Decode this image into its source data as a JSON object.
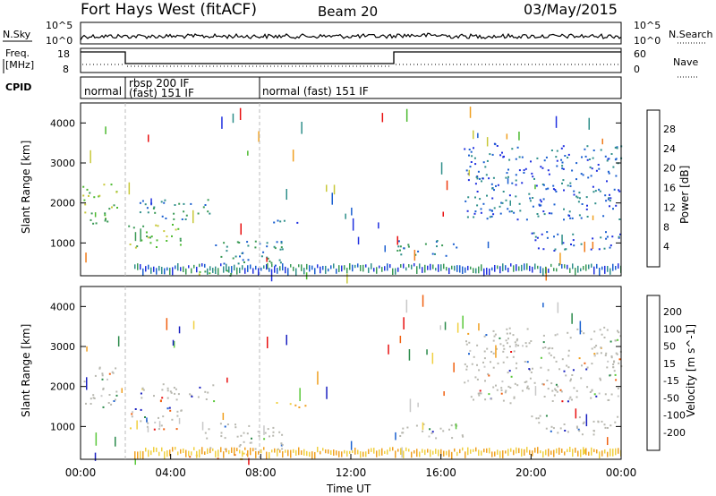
{
  "header": {
    "title": "Fort Hays West (fitACF)",
    "beam": "Beam 20",
    "date": "03/May/2015"
  },
  "top_panels": {
    "nsky_label": "N.Sky",
    "nsky_ticks": [
      "10^5",
      "10^0"
    ],
    "nsearch_label": "N.Search",
    "freq_label_line1": "Freq.",
    "freq_label_line2": "[MHz]",
    "freq_ticks": [
      "18",
      "8"
    ],
    "nave_label": "Nave",
    "nave_ticks": [
      "60",
      "0"
    ],
    "cpid_label": "CPID",
    "cpid_segments": [
      "normal",
      "rbsp 200 IF",
      "(fast) 151 IF",
      "normal (fast) 151 IF"
    ]
  },
  "colors": {
    "power_scale": [
      "#2030e0",
      "#1a5fd0",
      "#2f8f8a",
      "#3a9a55",
      "#4cba30",
      "#c8c838",
      "#f0a020",
      "#f07a18",
      "#ee3a10",
      "#e81010"
    ],
    "velocity_scale": [
      "#1a20c0",
      "#1a60d0",
      "#2a8a4a",
      "#5ac83a",
      "#c8c8c8",
      "#c8c8c8",
      "#f0d040",
      "#f0a020",
      "#f06010",
      "#e81010"
    ],
    "ground_scatter": "#b8b8b0"
  },
  "chart_data": [
    {
      "type": "heatmap",
      "title": "",
      "xlabel": "",
      "ylabel": "Slant Range [km]",
      "colorbar_label": "Power [dB]",
      "colorbar_ticks": [
        "28",
        "24",
        "20",
        "16",
        "12",
        "8",
        "4"
      ],
      "xlim": [
        "00:00",
        "24:00"
      ],
      "ylim": [
        180,
        4500
      ],
      "yticks": [
        "1000",
        "2000",
        "3000",
        "4000"
      ],
      "regions": [
        {
          "t0": 0.0,
          "t1": 1.6,
          "r0": 1500,
          "r1": 2500,
          "level": "high"
        },
        {
          "t0": 2.0,
          "t1": 4.5,
          "r0": 900,
          "r1": 1500,
          "level": "high"
        },
        {
          "t0": 2.6,
          "t1": 6.0,
          "r0": 1600,
          "r1": 2100,
          "level": "medium"
        },
        {
          "t0": 4.4,
          "t1": 7.5,
          "r0": 200,
          "r1": 350,
          "level": "high"
        },
        {
          "t0": 5.5,
          "t1": 9.0,
          "r0": 450,
          "r1": 1100,
          "level": "medium"
        },
        {
          "t0": 8.5,
          "t1": 10.5,
          "r0": 1500,
          "r1": 1650,
          "level": "low"
        },
        {
          "t0": 14.0,
          "t1": 17.0,
          "r0": 700,
          "r1": 1100,
          "level": "medium"
        },
        {
          "t0": 17.0,
          "t1": 24.0,
          "r0": 1600,
          "r1": 3500,
          "level": "low"
        },
        {
          "t0": 20.0,
          "t1": 24.0,
          "r0": 800,
          "r1": 1300,
          "level": "low"
        }
      ]
    },
    {
      "type": "heatmap",
      "title": "",
      "xlabel": "Time UT",
      "ylabel": "Slant Range [km]",
      "colorbar_label": "Velocity [m s^-1]",
      "colorbar_ticks": [
        "200",
        "100",
        "50",
        "15",
        "-15",
        "-50",
        "-100",
        "-200"
      ],
      "xlim": [
        "00:00",
        "24:00"
      ],
      "xticks": [
        "00:00",
        "04:00",
        "08:00",
        "12:00",
        "16:00",
        "20:00",
        "00:00"
      ],
      "ylim": [
        180,
        4500
      ],
      "yticks": [
        "1000",
        "2000",
        "3000",
        "4000"
      ],
      "regions": [
        {
          "t0": 0.0,
          "t1": 1.6,
          "r0": 1500,
          "r1": 2500,
          "level": "ground"
        },
        {
          "t0": 2.0,
          "t1": 4.5,
          "r0": 900,
          "r1": 1500,
          "level": "mixed"
        },
        {
          "t0": 2.6,
          "t1": 6.0,
          "r0": 1600,
          "r1": 2100,
          "level": "ground"
        },
        {
          "t0": 4.4,
          "t1": 7.5,
          "r0": 200,
          "r1": 350,
          "level": "negative"
        },
        {
          "t0": 5.5,
          "t1": 9.0,
          "r0": 450,
          "r1": 1100,
          "level": "ground"
        },
        {
          "t0": 8.5,
          "t1": 10.5,
          "r0": 1500,
          "r1": 1650,
          "level": "negative"
        },
        {
          "t0": 14.0,
          "t1": 17.0,
          "r0": 700,
          "r1": 1100,
          "level": "ground"
        },
        {
          "t0": 17.0,
          "t1": 24.0,
          "r0": 1600,
          "r1": 3500,
          "level": "ground"
        },
        {
          "t0": 20.0,
          "t1": 24.0,
          "r0": 800,
          "r1": 1300,
          "level": "ground"
        }
      ]
    }
  ]
}
